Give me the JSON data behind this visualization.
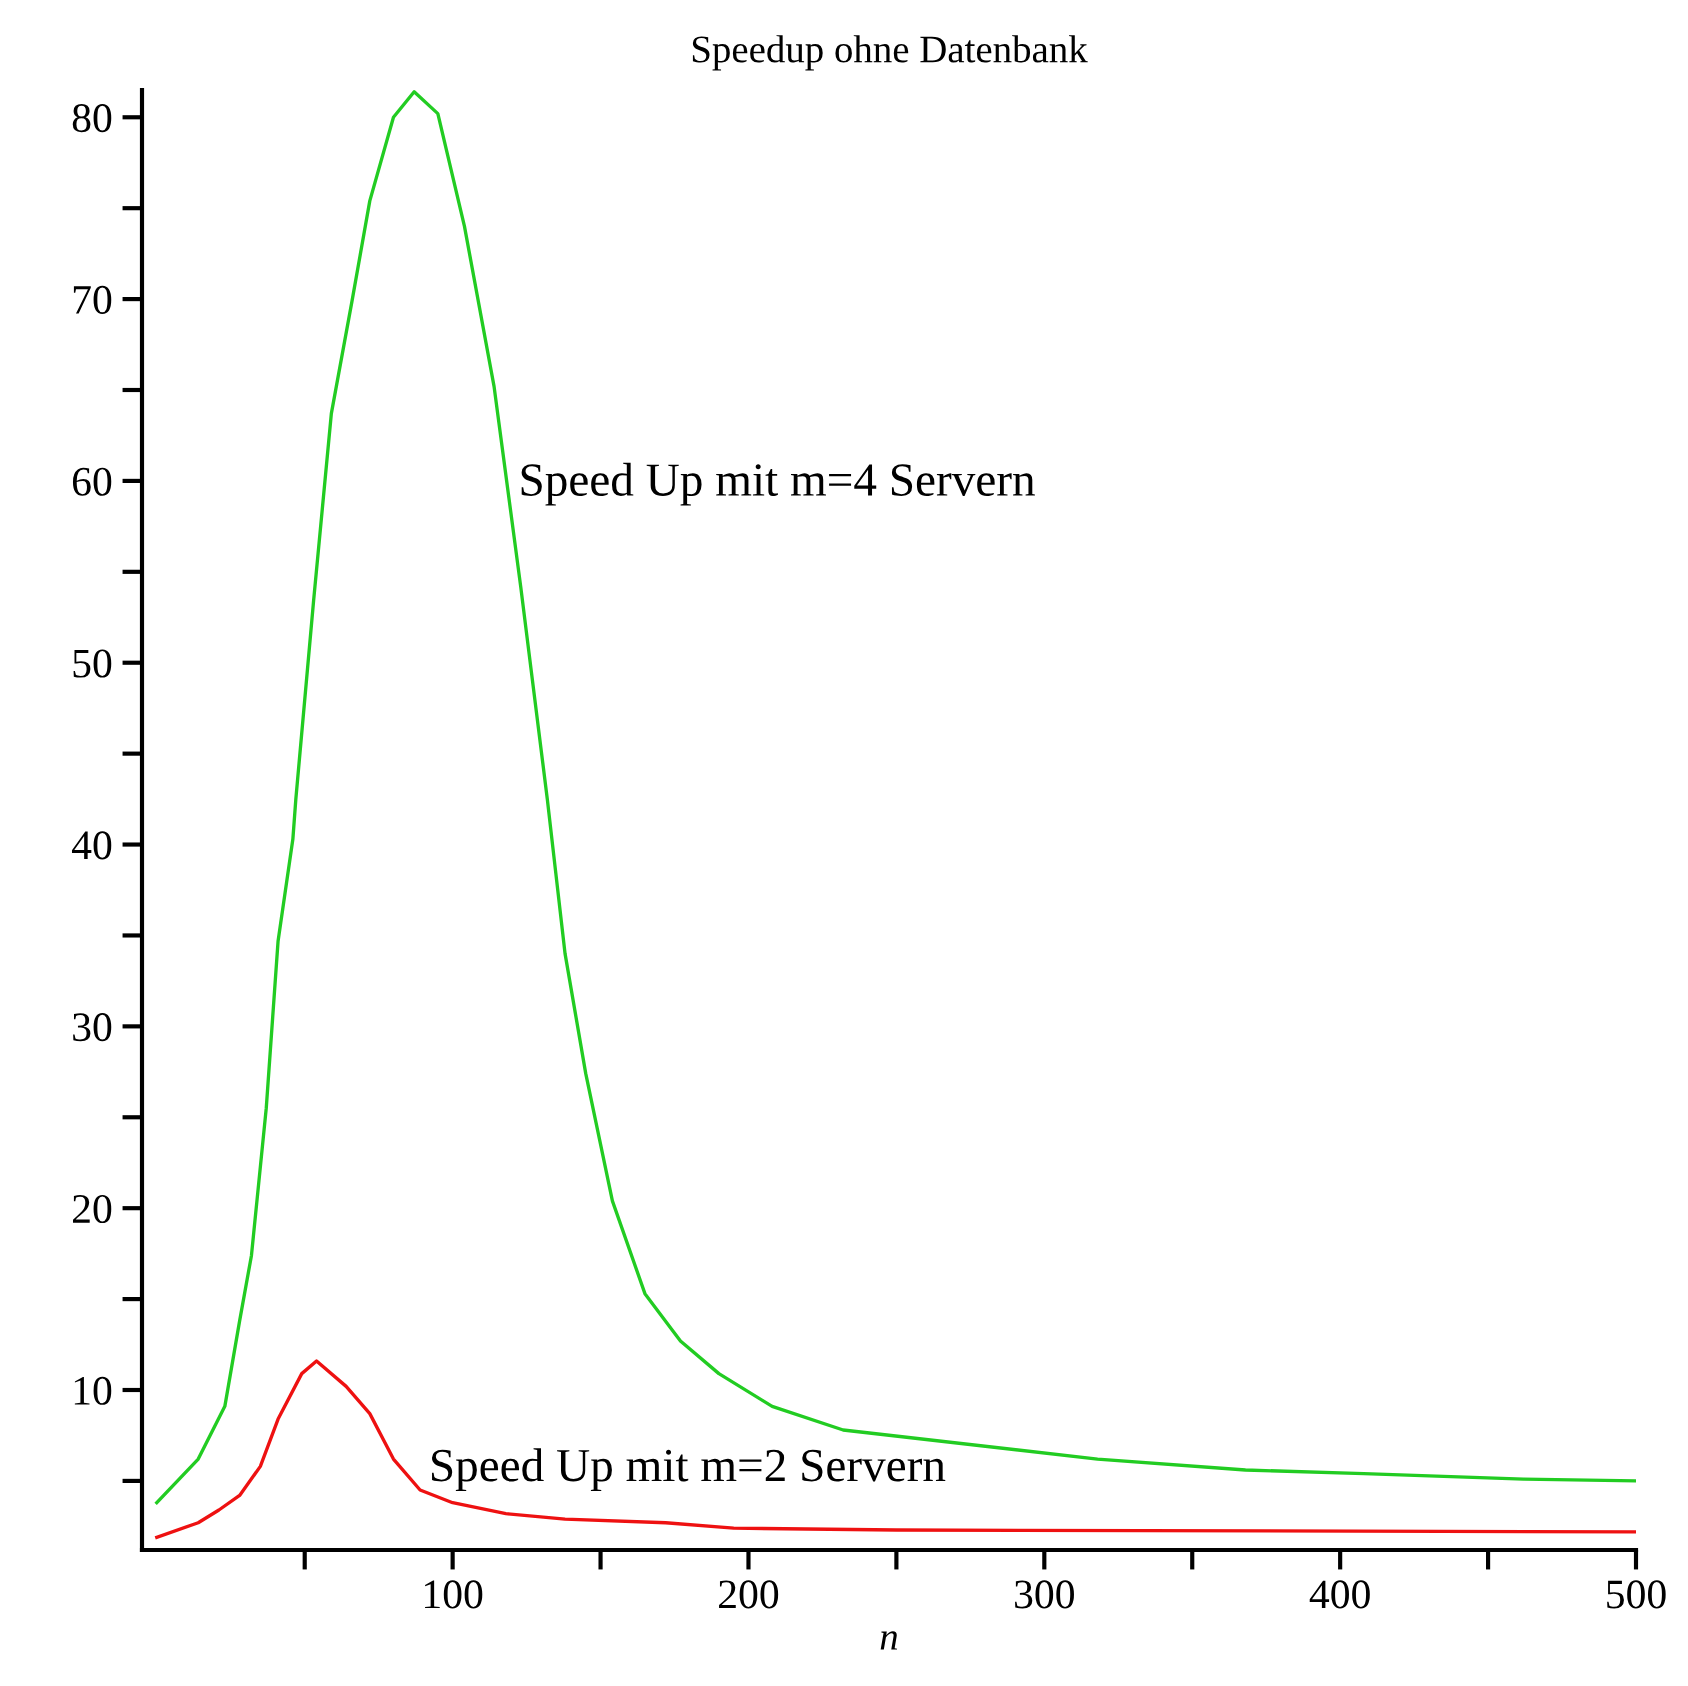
{
  "chart_data": {
    "type": "line",
    "title": "Speedup ohne Datenbank",
    "xlabel": "n",
    "series": [
      {
        "name": "Speed Up mit m=4 Servern",
        "color": "#22cc22",
        "x": [
          0,
          14,
          23,
          28,
          32,
          37,
          41,
          46,
          47,
          53,
          59,
          66,
          72,
          80,
          87,
          95,
          104,
          114,
          123,
          132,
          138,
          145,
          154,
          165,
          177,
          190,
          208,
          232,
          318,
          368,
          408,
          462,
          500
        ],
        "values": [
          3.8,
          6.2,
          9.1,
          13.8,
          17.4,
          25.5,
          34.7,
          40.3,
          42.5,
          53.4,
          63.7,
          69.9,
          75.4,
          80,
          81.4,
          80.2,
          74,
          65.2,
          54.2,
          42.5,
          34,
          27.4,
          20.4,
          15.3,
          12.7,
          10.9,
          9.1,
          7.8,
          6.2,
          5.6,
          5.4,
          5.1,
          5.0
        ]
      },
      {
        "name": "Speed Up mit m=2 Servern",
        "color": "#ee1111",
        "x": [
          0,
          14,
          21,
          28,
          35,
          41,
          49,
          54,
          64,
          72,
          80,
          89,
          100,
          118,
          138,
          172,
          195,
          250,
          500
        ],
        "values": [
          1.9,
          2.7,
          3.4,
          4.2,
          5.8,
          8.4,
          10.9,
          11.6,
          10.2,
          8.7,
          6.2,
          4.5,
          3.8,
          3.2,
          2.9,
          2.7,
          2.4,
          2.3,
          2.2
        ]
      }
    ],
    "xlim": [
      -5,
      500
    ],
    "ylim": [
      1.2,
      81.5
    ],
    "xticks": [
      {
        "value": 50,
        "label": null
      },
      100,
      {
        "value": 150,
        "label": null
      },
      200,
      {
        "value": 250,
        "label": null
      },
      300,
      {
        "value": 350,
        "label": null
      },
      400,
      {
        "value": 450,
        "label": null
      },
      500
    ],
    "yticks": [
      {
        "value": 5,
        "label": null
      },
      10,
      {
        "value": 15,
        "label": null
      },
      20,
      {
        "value": 25,
        "label": null
      },
      30,
      {
        "value": 35,
        "label": null
      },
      40,
      {
        "value": 45,
        "label": null
      },
      50,
      {
        "value": 55,
        "label": null
      },
      60,
      {
        "value": 65,
        "label": null
      },
      70,
      {
        "value": 75,
        "label": null
      },
      80
    ],
    "grid": false,
    "legend": false,
    "line_style": "solid",
    "marker": "none"
  }
}
